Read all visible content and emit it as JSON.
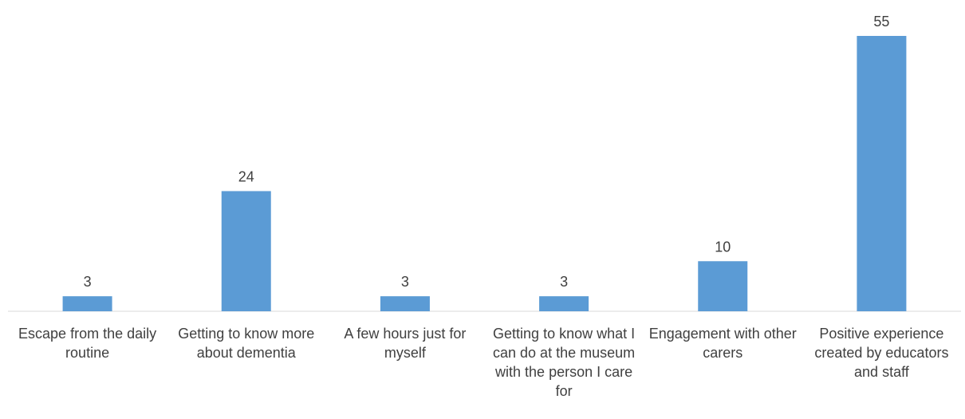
{
  "chart_data": {
    "type": "bar",
    "categories": [
      "Escape from the daily routine",
      "Getting to know more about dementia",
      "A few hours just for myself",
      "Getting to know what I can do at the museum with the person I care for",
      "Engagement with other carers",
      "Positive experience created by educators and staff"
    ],
    "values": [
      3,
      24,
      3,
      3,
      10,
      55
    ],
    "title": "",
    "xlabel": "",
    "ylabel": "",
    "ylim": [
      0,
      55
    ],
    "grid": false,
    "legend": "none",
    "bar_color": "#5b9bd5",
    "axis_color": "#d9d9d9",
    "text_color": "#404040"
  }
}
